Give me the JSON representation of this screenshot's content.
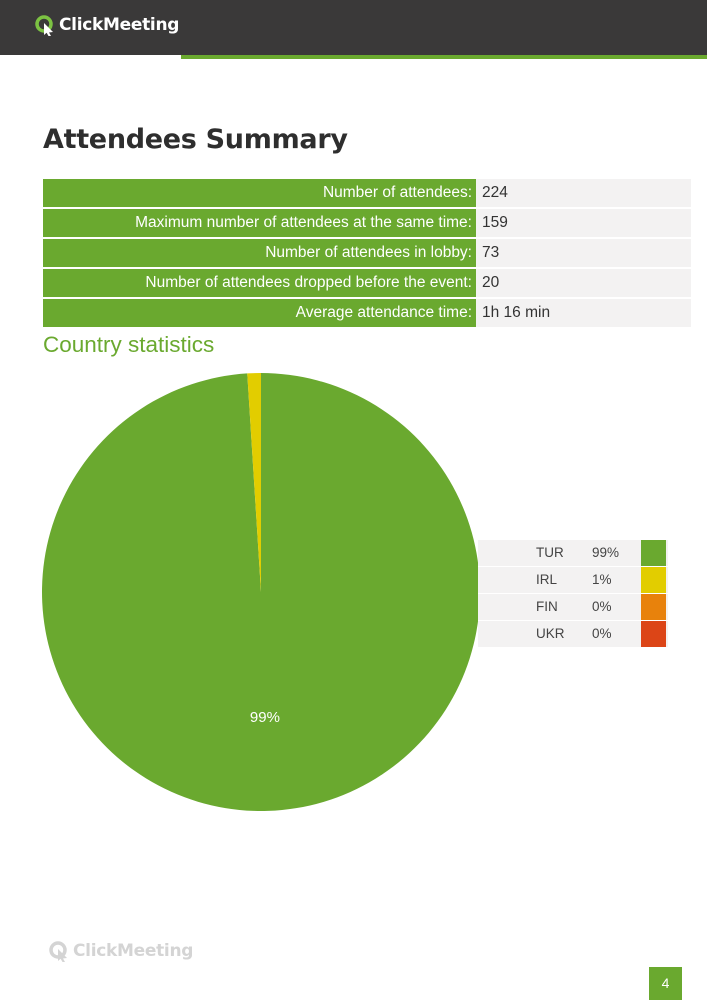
{
  "header": {
    "brand": "ClickMeeting"
  },
  "title": "Attendees Summary",
  "summary": [
    {
      "label": "Number of attendees:",
      "value": "224"
    },
    {
      "label": "Maximum number of attendees at the same time:",
      "value": "159"
    },
    {
      "label": "Number of attendees in lobby:",
      "value": "73"
    },
    {
      "label": "Number of attendees dropped before the event:",
      "value": "20"
    },
    {
      "label": "Average attendance time:",
      "value": "1h 16 min"
    }
  ],
  "section_title": "Country statistics",
  "chart_data": {
    "type": "pie",
    "title": "",
    "slices": [
      {
        "label": "TUR",
        "percent_label": "99%",
        "value": 99,
        "color": "#6aa92f",
        "data_label": "99%"
      },
      {
        "label": "IRL",
        "percent_label": "1%",
        "value": 1,
        "color": "#e2cd00",
        "data_label": ""
      },
      {
        "label": "FIN",
        "percent_label": "0%",
        "value": 0,
        "color": "#e8820c",
        "data_label": ""
      },
      {
        "label": "UKR",
        "percent_label": "0%",
        "value": 0,
        "color": "#dc4517",
        "data_label": ""
      }
    ],
    "legend_position": "right"
  },
  "footer": {
    "brand": "ClickMeeting",
    "page_number": "4"
  }
}
